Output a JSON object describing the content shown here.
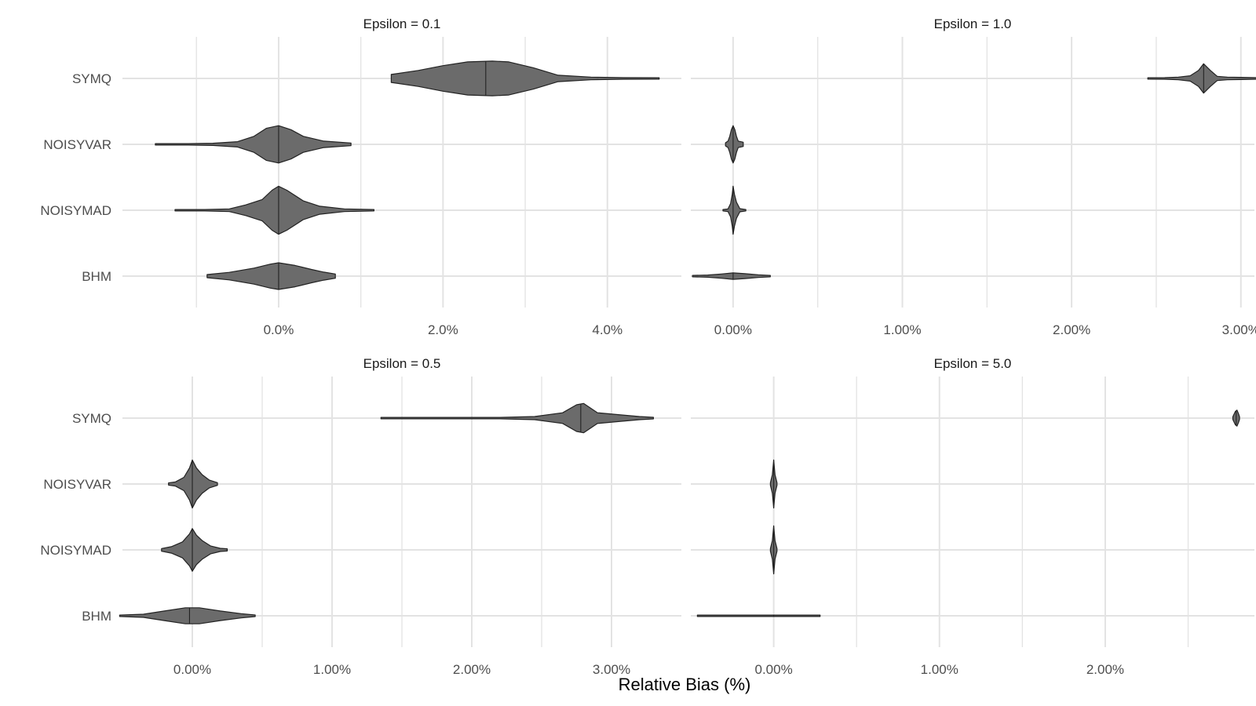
{
  "chart_data": {
    "type": "violin",
    "xlabel": "Relative Bias (%)",
    "ylabel": "",
    "categories": [
      "SYMQ",
      "NOISYVAR",
      "NOISYMAD",
      "BHM"
    ],
    "grid": true,
    "colors": {
      "fill": "#6b6b6b",
      "stroke": "#222222",
      "grid": "#e3e3e3"
    },
    "panels": [
      {
        "title": "Epsilon = 0.1",
        "xlim": [
          -1.9,
          4.9
        ],
        "xticks": [
          0.0,
          2.0,
          4.0
        ],
        "xtick_labels": [
          "0.0%",
          "2.0%",
          "4.0%"
        ],
        "violins": [
          {
            "category": "SYMQ",
            "min": 1.37,
            "max": 4.63,
            "median": 2.52,
            "profile": [
              [
                1.37,
                0.15
              ],
              [
                1.7,
                0.3
              ],
              [
                2.0,
                0.48
              ],
              [
                2.3,
                0.62
              ],
              [
                2.6,
                0.65
              ],
              [
                2.8,
                0.62
              ],
              [
                3.1,
                0.4
              ],
              [
                3.4,
                0.12
              ],
              [
                3.8,
                0.05
              ],
              [
                4.2,
                0.03
              ],
              [
                4.63,
                0.02
              ]
            ]
          },
          {
            "category": "NOISYVAR",
            "min": -1.5,
            "max": 0.88,
            "median": 0.0,
            "profile": [
              [
                -1.5,
                0.02
              ],
              [
                -1.1,
                0.02
              ],
              [
                -0.8,
                0.04
              ],
              [
                -0.5,
                0.1
              ],
              [
                -0.3,
                0.3
              ],
              [
                -0.15,
                0.6
              ],
              [
                0.0,
                0.7
              ],
              [
                0.15,
                0.55
              ],
              [
                0.3,
                0.3
              ],
              [
                0.55,
                0.12
              ],
              [
                0.88,
                0.05
              ]
            ]
          },
          {
            "category": "NOISYMAD",
            "min": -1.26,
            "max": 1.16,
            "median": 0.0,
            "profile": [
              [
                -1.26,
                0.02
              ],
              [
                -0.9,
                0.02
              ],
              [
                -0.6,
                0.05
              ],
              [
                -0.4,
                0.2
              ],
              [
                -0.2,
                0.4
              ],
              [
                -0.08,
                0.75
              ],
              [
                0.0,
                0.9
              ],
              [
                0.1,
                0.75
              ],
              [
                0.3,
                0.35
              ],
              [
                0.5,
                0.15
              ],
              [
                0.8,
                0.05
              ],
              [
                1.16,
                0.02
              ]
            ]
          },
          {
            "category": "BHM",
            "min": -0.87,
            "max": 0.69,
            "median": 0.0,
            "profile": [
              [
                -0.87,
                0.06
              ],
              [
                -0.6,
                0.14
              ],
              [
                -0.3,
                0.3
              ],
              [
                -0.1,
                0.45
              ],
              [
                0.0,
                0.5
              ],
              [
                0.2,
                0.4
              ],
              [
                0.4,
                0.25
              ],
              [
                0.55,
                0.15
              ],
              [
                0.69,
                0.08
              ]
            ]
          }
        ]
      },
      {
        "title": "Epsilon = 1.0",
        "xlim": [
          -0.25,
          3.08
        ],
        "xticks": [
          0.0,
          1.0,
          2.0,
          3.0
        ],
        "xtick_labels": [
          "0.00%",
          "1.00%",
          "2.00%",
          "3.00%"
        ],
        "violins": [
          {
            "category": "SYMQ",
            "min": 2.45,
            "max": 3.12,
            "median": 2.78,
            "profile": [
              [
                2.45,
                0.02
              ],
              [
                2.55,
                0.03
              ],
              [
                2.63,
                0.05
              ],
              [
                2.7,
                0.1
              ],
              [
                2.75,
                0.3
              ],
              [
                2.78,
                0.55
              ],
              [
                2.82,
                0.3
              ],
              [
                2.86,
                0.08
              ],
              [
                2.92,
                0.05
              ],
              [
                3.0,
                0.04
              ],
              [
                3.12,
                0.02
              ]
            ]
          },
          {
            "category": "NOISYVAR",
            "min": -0.045,
            "max": 0.06,
            "median": 0.0,
            "profile": [
              [
                -0.045,
                0.06
              ],
              [
                -0.03,
                0.12
              ],
              [
                -0.02,
                0.3
              ],
              [
                -0.01,
                0.55
              ],
              [
                0.0,
                0.7
              ],
              [
                0.01,
                0.55
              ],
              [
                0.02,
                0.3
              ],
              [
                0.03,
                0.12
              ],
              [
                0.045,
                0.1
              ],
              [
                0.06,
                0.08
              ]
            ]
          },
          {
            "category": "NOISYMAD",
            "min": -0.06,
            "max": 0.075,
            "median": 0.0,
            "profile": [
              [
                -0.06,
                0.02
              ],
              [
                -0.03,
                0.05
              ],
              [
                -0.015,
                0.25
              ],
              [
                -0.005,
                0.6
              ],
              [
                0.0,
                0.9
              ],
              [
                0.008,
                0.6
              ],
              [
                0.02,
                0.3
              ],
              [
                0.04,
                0.06
              ],
              [
                0.075,
                0.02
              ]
            ]
          },
          {
            "category": "BHM",
            "min": -0.24,
            "max": 0.22,
            "median": 0.0,
            "profile": [
              [
                -0.24,
                0.02
              ],
              [
                -0.15,
                0.04
              ],
              [
                -0.07,
                0.08
              ],
              [
                0.0,
                0.12
              ],
              [
                0.07,
                0.09
              ],
              [
                0.15,
                0.05
              ],
              [
                0.22,
                0.02
              ]
            ]
          }
        ]
      },
      {
        "title": "Epsilon = 0.5",
        "xlim": [
          -0.5,
          3.5
        ],
        "xticks": [
          0.0,
          1.0,
          2.0,
          3.0
        ],
        "xtick_labels": [
          "0.00%",
          "1.00%",
          "2.00%",
          "3.00%"
        ],
        "violins": [
          {
            "category": "SYMQ",
            "min": 1.35,
            "max": 3.3,
            "median": 2.78,
            "profile": [
              [
                1.35,
                0.01
              ],
              [
                1.8,
                0.01
              ],
              [
                2.2,
                0.02
              ],
              [
                2.45,
                0.06
              ],
              [
                2.65,
                0.2
              ],
              [
                2.75,
                0.5
              ],
              [
                2.8,
                0.55
              ],
              [
                2.9,
                0.2
              ],
              [
                3.05,
                0.13
              ],
              [
                3.2,
                0.06
              ],
              [
                3.3,
                0.03
              ]
            ]
          },
          {
            "category": "NOISYVAR",
            "min": -0.17,
            "max": 0.18,
            "median": 0.0,
            "profile": [
              [
                -0.17,
                0.04
              ],
              [
                -0.12,
                0.08
              ],
              [
                -0.06,
                0.25
              ],
              [
                -0.02,
                0.6
              ],
              [
                0.0,
                0.9
              ],
              [
                0.03,
                0.6
              ],
              [
                0.07,
                0.35
              ],
              [
                0.12,
                0.15
              ],
              [
                0.18,
                0.05
              ]
            ]
          },
          {
            "category": "NOISYMAD",
            "min": -0.22,
            "max": 0.25,
            "median": 0.0,
            "profile": [
              [
                -0.22,
                0.05
              ],
              [
                -0.15,
                0.12
              ],
              [
                -0.07,
                0.3
              ],
              [
                -0.02,
                0.6
              ],
              [
                0.0,
                0.8
              ],
              [
                0.03,
                0.55
              ],
              [
                0.07,
                0.35
              ],
              [
                0.13,
                0.15
              ],
              [
                0.2,
                0.06
              ],
              [
                0.25,
                0.04
              ]
            ]
          },
          {
            "category": "BHM",
            "min": -0.52,
            "max": 0.45,
            "median": -0.02,
            "profile": [
              [
                -0.52,
                0.02
              ],
              [
                -0.35,
                0.06
              ],
              [
                -0.2,
                0.18
              ],
              [
                -0.05,
                0.3
              ],
              [
                0.05,
                0.3
              ],
              [
                0.2,
                0.18
              ],
              [
                0.35,
                0.08
              ],
              [
                0.45,
                0.03
              ]
            ]
          }
        ]
      },
      {
        "title": "Epsilon = 5.0",
        "xlim": [
          -0.5,
          2.9
        ],
        "xticks": [
          0.0,
          1.0,
          2.0
        ],
        "xtick_labels": [
          "0.00%",
          "1.00%",
          "2.00%"
        ],
        "violins": [
          {
            "category": "SYMQ",
            "min": 2.77,
            "max": 2.81,
            "median": 2.79,
            "profile": [
              [
                2.77,
                0.05
              ],
              [
                2.785,
                0.25
              ],
              [
                2.795,
                0.3
              ],
              [
                2.805,
                0.15
              ],
              [
                2.81,
                0.05
              ]
            ]
          },
          {
            "category": "NOISYVAR",
            "min": -0.02,
            "max": 0.02,
            "median": 0.0,
            "profile": [
              [
                -0.02,
                0.05
              ],
              [
                -0.008,
                0.35
              ],
              [
                0.0,
                0.9
              ],
              [
                0.008,
                0.35
              ],
              [
                0.02,
                0.05
              ]
            ]
          },
          {
            "category": "NOISYMAD",
            "min": -0.02,
            "max": 0.02,
            "median": 0.0,
            "profile": [
              [
                -0.02,
                0.05
              ],
              [
                -0.008,
                0.35
              ],
              [
                0.0,
                0.9
              ],
              [
                0.008,
                0.35
              ],
              [
                0.02,
                0.05
              ]
            ]
          },
          {
            "category": "BHM",
            "min": -0.46,
            "max": 0.28,
            "median": 0.0,
            "profile": [
              [
                -0.46,
                0.01
              ],
              [
                -0.2,
                0.01
              ],
              [
                0.0,
                0.02
              ],
              [
                0.2,
                0.01
              ],
              [
                0.28,
                0.01
              ]
            ]
          }
        ]
      }
    ]
  }
}
